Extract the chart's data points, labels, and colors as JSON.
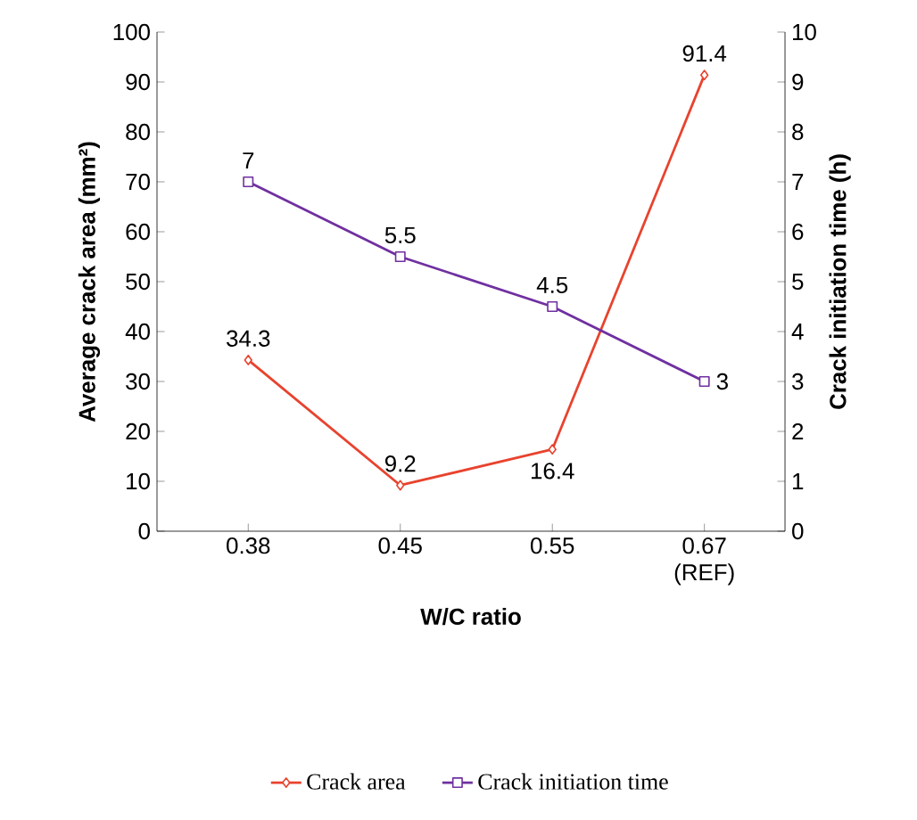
{
  "chart_data": {
    "type": "line",
    "xlabel": "W/C ratio",
    "ylabel": "Average crack area (mm²)",
    "y2label": "Crack initiation time (h)",
    "categories": [
      "0.38",
      "0.45",
      "0.55",
      "0.67 (REF)"
    ],
    "series": [
      {
        "name": "Crack area",
        "color": "#e8432e",
        "marker": "diamond",
        "values": [
          34.3,
          9.2,
          16.4,
          91.4
        ]
      },
      {
        "name": "Crack initiation time",
        "color": "#7030a0",
        "marker": "square",
        "axis": "y2",
        "values": [
          7,
          5.5,
          4.5,
          3
        ]
      }
    ],
    "ylim": [
      0,
      100
    ],
    "yticks": [
      0,
      10,
      20,
      30,
      40,
      50,
      60,
      70,
      80,
      90,
      100
    ],
    "y2lim": [
      0,
      10
    ],
    "y2ticks": [
      0,
      1,
      2,
      3,
      4,
      5,
      6,
      7,
      8,
      9,
      10
    ],
    "data_labels": true,
    "legend": "bottom",
    "grid": false,
    "line_style": "solid"
  }
}
